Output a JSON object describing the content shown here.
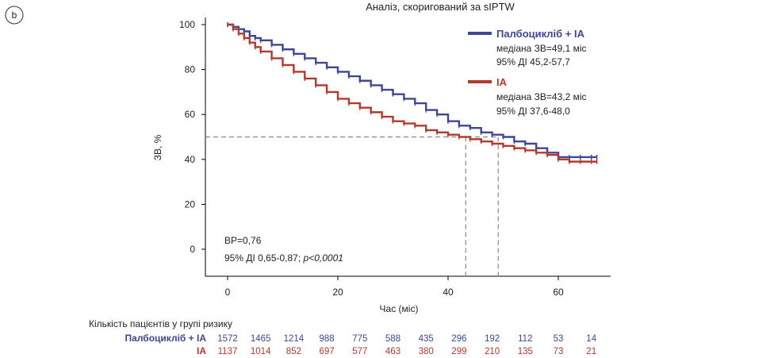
{
  "panel_label": "b",
  "chart_data": {
    "type": "line",
    "title": "Аналіз, скоригований  за sIPTW",
    "xlabel": "Час (міс)",
    "ylabel": "ЗВ, %",
    "xlim": [
      -5,
      69
    ],
    "ylim": [
      -12,
      100
    ],
    "x_ticks": [
      0,
      20,
      40,
      60
    ],
    "y_ticks": [
      0,
      20,
      40,
      60,
      80,
      100
    ],
    "grid": false,
    "legend_position": "top-right",
    "series": [
      {
        "name": "Палбоцикліб + ІА",
        "color": "#3f4694",
        "median_text": "медіана ЗВ=49,1 міс",
        "ci_text": "95% ДІ 45,2-57,7",
        "x": [
          0,
          1,
          2,
          3,
          4,
          5,
          6,
          8,
          10,
          12,
          14,
          16,
          18,
          20,
          22,
          24,
          26,
          28,
          30,
          32,
          34,
          36,
          38,
          40,
          42,
          44,
          46,
          48,
          50,
          52,
          54,
          56,
          58,
          60,
          62,
          64,
          66,
          67
        ],
        "y": [
          100,
          99,
          98,
          97,
          95,
          94,
          93,
          91,
          89,
          87,
          85,
          83,
          81,
          79,
          77,
          75,
          73,
          71,
          69,
          67,
          65,
          62,
          60,
          57,
          55,
          54,
          52,
          51,
          50,
          48,
          47,
          45,
          43,
          41,
          41,
          41,
          41,
          41
        ]
      },
      {
        "name": "ІА",
        "color": "#b03a2e",
        "median_text": "медіана ЗВ=43,2 міс",
        "ci_text": "95% ДІ 37,6-48,0",
        "x": [
          0,
          1,
          2,
          3,
          4,
          5,
          6,
          8,
          10,
          12,
          14,
          16,
          18,
          20,
          22,
          24,
          26,
          28,
          30,
          32,
          34,
          36,
          38,
          40,
          42,
          44,
          46,
          48,
          50,
          52,
          54,
          56,
          58,
          60,
          62,
          64,
          66,
          67
        ],
        "y": [
          100,
          98,
          96,
          94,
          92,
          90,
          88,
          85,
          82,
          79,
          76,
          73,
          70,
          67,
          65,
          63,
          61,
          59,
          57,
          56,
          55,
          53,
          52,
          51,
          50,
          49,
          48,
          47,
          46,
          45,
          44,
          43,
          42,
          40,
          39,
          39,
          39,
          39
        ]
      }
    ],
    "reference_lines": {
      "horizontal_y": 50,
      "vertical_x": [
        43.2,
        49.1
      ]
    },
    "annotation": {
      "hr_text": "ВР=0,76",
      "ci_text": "95% ДІ 0,65-0,87; ",
      "p_text": "p<0,0001"
    },
    "risk_table": {
      "title": "Кількість пацієнтів у групі ризику",
      "x": [
        0,
        6,
        12,
        18,
        24,
        30,
        36,
        42,
        48,
        54,
        60,
        66
      ],
      "rows": [
        {
          "label": "Палбоцикліб + ІА",
          "values": [
            1572,
            1465,
            1214,
            988,
            775,
            588,
            435,
            296,
            192,
            112,
            53,
            14
          ]
        },
        {
          "label": "ІА",
          "values": [
            1137,
            1014,
            852,
            697,
            577,
            463,
            380,
            299,
            210,
            135,
            73,
            21
          ]
        }
      ]
    }
  }
}
